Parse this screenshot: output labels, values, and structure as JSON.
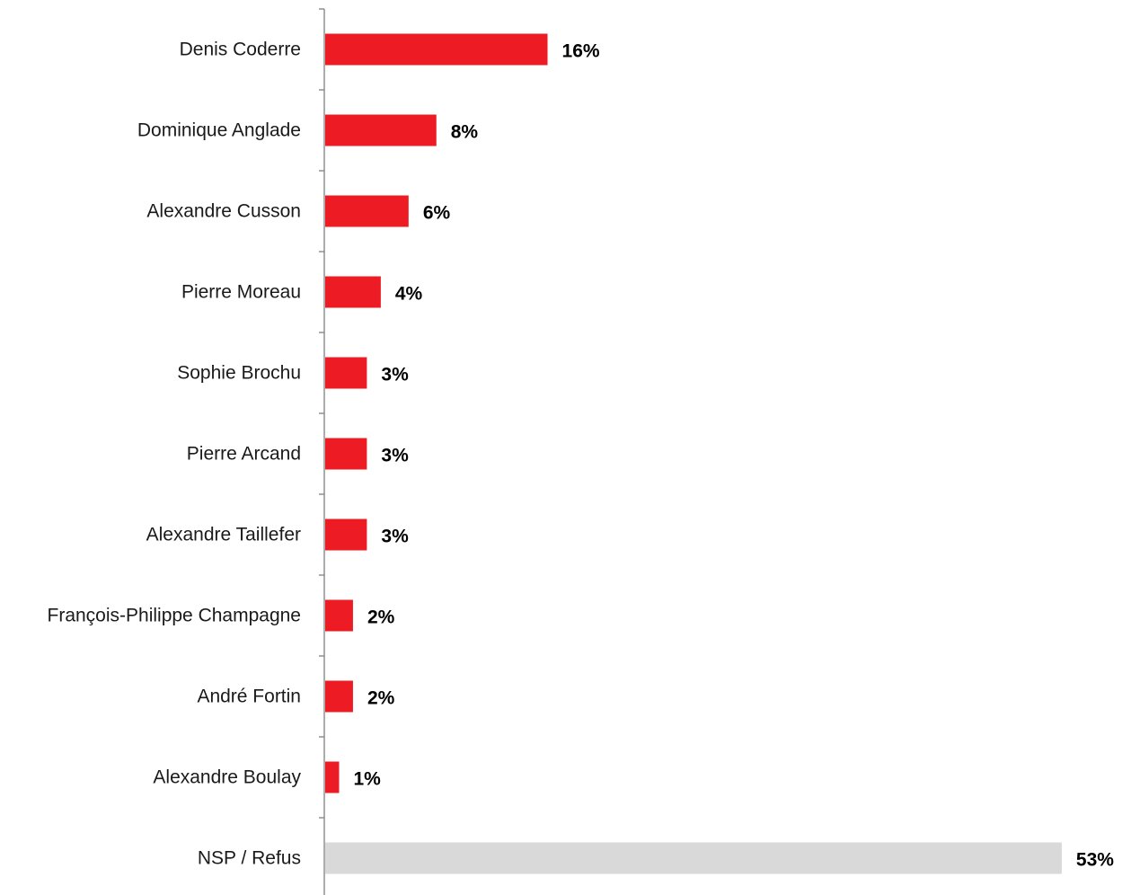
{
  "chart_data": {
    "type": "bar",
    "orientation": "horizontal",
    "categories": [
      "Denis Coderre",
      "Dominique Anglade",
      "Alexandre Cusson",
      "Pierre Moreau",
      "Sophie Brochu",
      "Pierre Arcand",
      "Alexandre Taillefer",
      "François-Philippe Champagne",
      "André Fortin",
      "Alexandre Boulay",
      "NSP / Refus"
    ],
    "values": [
      16,
      8,
      6,
      4,
      3,
      3,
      3,
      2,
      2,
      1,
      53
    ],
    "value_labels": [
      "16%",
      "8%",
      "6%",
      "4%",
      "3%",
      "3%",
      "3%",
      "2%",
      "2%",
      "1%",
      "53%"
    ],
    "bar_colors": [
      "#ed1c24",
      "#ed1c24",
      "#ed1c24",
      "#ed1c24",
      "#ed1c24",
      "#ed1c24",
      "#ed1c24",
      "#ed1c24",
      "#ed1c24",
      "#ed1c24",
      "#d9d9d9"
    ],
    "title": "",
    "xlabel": "",
    "ylabel": "",
    "xlim": [
      0,
      53
    ],
    "grid": false,
    "legend": "none",
    "axis_color": "#808080"
  }
}
